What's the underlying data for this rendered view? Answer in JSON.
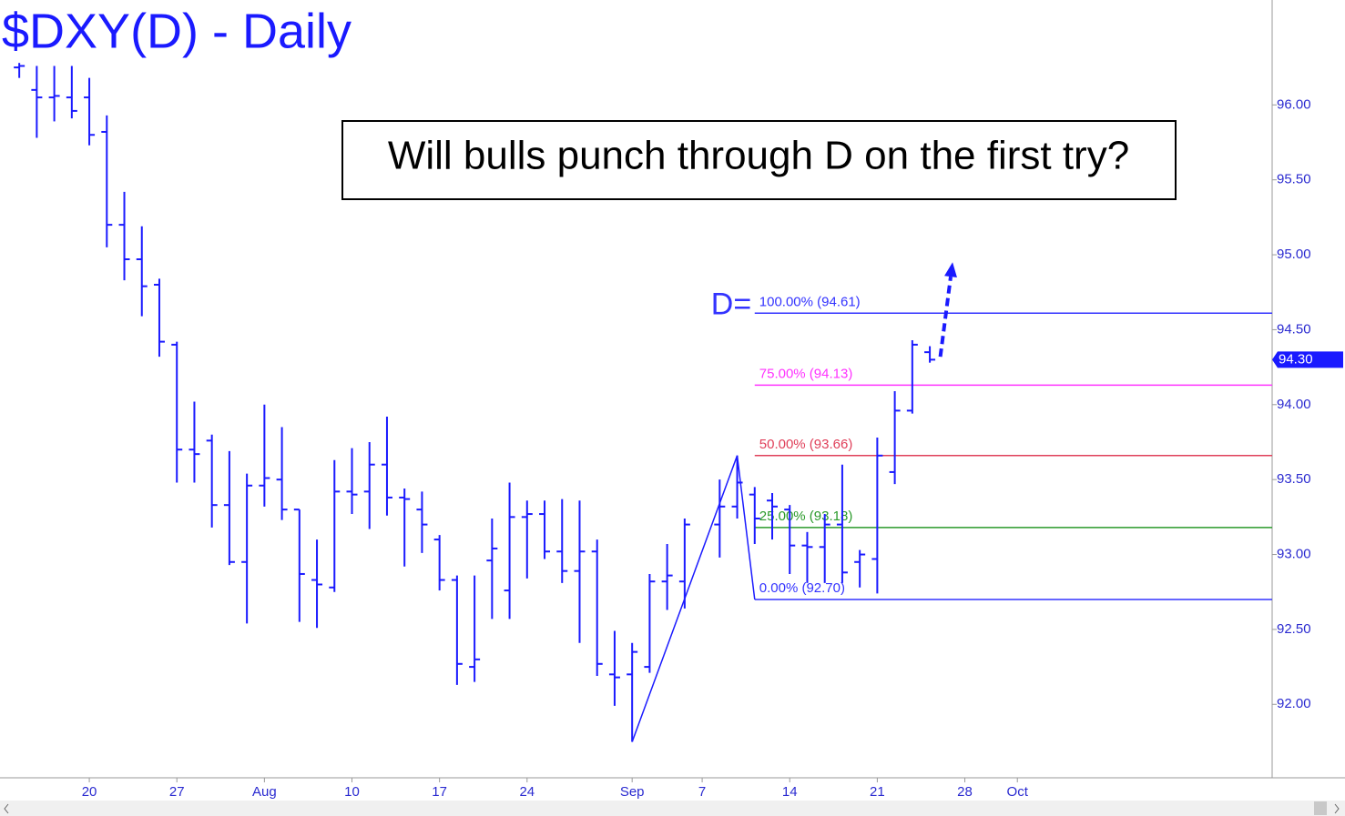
{
  "chart_data": {
    "type": "ohlc",
    "title": "$DXY(D) - Daily",
    "annotation": "Will bulls punch through D on the first try?",
    "point_label": "D=",
    "color": "#1a1aff",
    "xlim": [
      -5.1,
      67.55
    ],
    "ylim": [
      91.51,
      96.7
    ],
    "xticks": [
      {
        "value": 0,
        "label": "20"
      },
      {
        "value": 5,
        "label": "27"
      },
      {
        "value": 10,
        "label": "Aug"
      },
      {
        "value": 15,
        "label": "10"
      },
      {
        "value": 20,
        "label": "17"
      },
      {
        "value": 25,
        "label": "24"
      },
      {
        "value": 31,
        "label": "Sep"
      },
      {
        "value": 35,
        "label": "7"
      },
      {
        "value": 40,
        "label": "14"
      },
      {
        "value": 45,
        "label": "21"
      },
      {
        "value": 50,
        "label": "28"
      },
      {
        "value": 53,
        "label": "Oct"
      }
    ],
    "yticks": [
      {
        "value": 92,
        "label": "92.00"
      },
      {
        "value": 92.5,
        "label": "92.50"
      },
      {
        "value": 93,
        "label": "93.00"
      },
      {
        "value": 93.5,
        "label": "93.50"
      },
      {
        "value": 94,
        "label": "94.00"
      },
      {
        "value": 94.5,
        "label": "94.50"
      },
      {
        "value": 95,
        "label": "95.00"
      },
      {
        "value": 95.5,
        "label": "95.50"
      },
      {
        "value": 96,
        "label": "96.00"
      }
    ],
    "x": [
      -4,
      -3,
      -2,
      -1,
      0,
      1,
      2,
      3,
      4,
      5,
      6,
      7,
      8,
      9,
      10,
      11,
      12,
      13,
      14,
      15,
      16,
      17,
      18,
      19,
      20,
      21,
      22,
      23,
      24,
      25,
      26,
      27,
      28,
      29,
      30,
      31,
      32,
      33,
      34,
      36,
      37,
      38,
      39,
      40,
      41,
      42,
      43,
      44,
      45,
      46,
      47,
      48
    ],
    "open": [
      96.25,
      96.1,
      96.05,
      96.05,
      96.05,
      95.82,
      95.2,
      94.97,
      94.8,
      94.4,
      93.7,
      93.76,
      93.33,
      92.95,
      93.46,
      93.5,
      93.3,
      92.83,
      92.78,
      93.42,
      93.42,
      93.6,
      93.38,
      93.3,
      93.1,
      92.83,
      92.25,
      92.96,
      92.76,
      93.25,
      93.27,
      93.02,
      92.89,
      93.02,
      92.2,
      92.2,
      92.25,
      92.82,
      92.82,
      93.2,
      93.32,
      93.4,
      93.36,
      93.3,
      93.06,
      93.05,
      93.2,
      92.95,
      92.97,
      93.55,
      93.96,
      94.35
    ],
    "high": [
      96.28,
      96.26,
      96.26,
      96.26,
      96.18,
      95.93,
      95.42,
      95.19,
      94.84,
      94.42,
      94.02,
      93.8,
      93.69,
      93.54,
      94.0,
      93.85,
      93.3,
      93.1,
      93.63,
      93.71,
      93.75,
      93.92,
      93.44,
      93.42,
      93.13,
      92.86,
      92.86,
      93.24,
      93.48,
      93.36,
      93.36,
      93.37,
      93.36,
      93.1,
      92.49,
      92.41,
      92.87,
      93.07,
      93.24,
      93.5,
      93.66,
      93.45,
      93.41,
      93.33,
      93.15,
      93.27,
      93.6,
      93.03,
      93.78,
      94.09,
      94.43,
      94.39
    ],
    "low": [
      96.18,
      95.78,
      95.89,
      95.91,
      95.73,
      95.05,
      94.83,
      94.59,
      94.32,
      93.48,
      93.48,
      93.18,
      92.93,
      92.54,
      93.32,
      93.23,
      92.55,
      92.51,
      92.75,
      93.27,
      93.17,
      93.26,
      92.92,
      93.01,
      92.76,
      92.13,
      92.15,
      92.57,
      92.57,
      92.84,
      92.97,
      92.81,
      92.41,
      92.19,
      91.99,
      91.75,
      92.21,
      92.63,
      92.64,
      92.98,
      93.24,
      93.07,
      93.1,
      92.87,
      92.81,
      92.81,
      92.81,
      92.78,
      92.74,
      93.47,
      93.94,
      94.28
    ],
    "close": [
      96.26,
      96.05,
      96.06,
      95.96,
      95.8,
      95.2,
      94.97,
      94.79,
      94.42,
      93.7,
      93.67,
      93.33,
      92.95,
      93.46,
      93.51,
      93.3,
      92.87,
      92.8,
      93.42,
      93.4,
      93.6,
      93.38,
      93.37,
      93.2,
      92.83,
      92.27,
      92.3,
      93.04,
      93.25,
      93.27,
      93.02,
      92.89,
      93.02,
      92.27,
      92.18,
      92.35,
      92.82,
      92.86,
      93.2,
      93.32,
      93.48,
      93.24,
      93.32,
      93.06,
      93.05,
      93.2,
      92.88,
      93.0,
      93.66,
      93.96,
      94.4,
      94.3
    ],
    "last_price": {
      "value": 94.3,
      "label": "94.30"
    },
    "levels": [
      {
        "value": 94.61,
        "label": "100.00% (94.61)",
        "color": "#3333ff"
      },
      {
        "value": 94.13,
        "label": "75.00% (94.13)",
        "color": "#ff33ff"
      },
      {
        "value": 93.66,
        "label": "50.00% (93.66)",
        "color": "#e0405a"
      },
      {
        "value": 93.18,
        "label": "25.00% (93.18)",
        "color": "#2a9a2a"
      },
      {
        "value": 92.7,
        "label": "0.00% (92.70)",
        "color": "#3333ff"
      }
    ],
    "levels_start": 38,
    "pattern": {
      "x": [
        31,
        37,
        38
      ],
      "values": [
        91.75,
        93.66,
        92.7
      ]
    },
    "arrow": {
      "x": [
        48.6,
        49.3
      ],
      "values": [
        94.32,
        94.95
      ]
    }
  }
}
